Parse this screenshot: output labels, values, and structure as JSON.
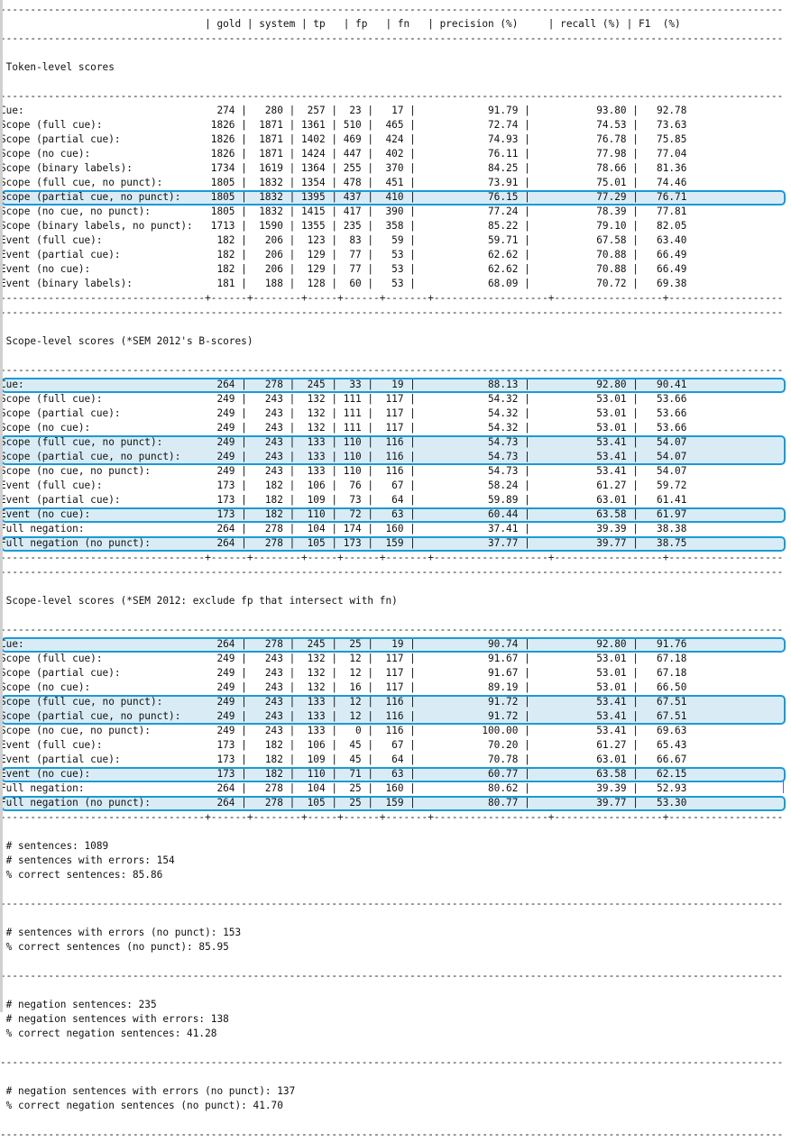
{
  "columns": {
    "gold": "gold",
    "system": "system",
    "tp": "tp",
    "fp": "fp",
    "fn": "fn",
    "precision": "precision (%)",
    "recall": "recall (%)",
    "f1": "F1  (%)"
  },
  "sections": [
    {
      "title": "Token-level scores",
      "rows": [
        {
          "label": "Cue:",
          "gold": "274",
          "system": "280",
          "tp": "257",
          "fp": "23",
          "fn": "17",
          "precision": "91.79",
          "recall": "93.80",
          "f1": "92.78"
        },
        {
          "label": "Scope (full cue):",
          "gold": "1826",
          "system": "1871",
          "tp": "1361",
          "fp": "510",
          "fn": "465",
          "precision": "72.74",
          "recall": "74.53",
          "f1": "73.63"
        },
        {
          "label": "Scope (partial cue):",
          "gold": "1826",
          "system": "1871",
          "tp": "1402",
          "fp": "469",
          "fn": "424",
          "precision": "74.93",
          "recall": "76.78",
          "f1": "75.85"
        },
        {
          "label": "Scope (no cue):",
          "gold": "1826",
          "system": "1871",
          "tp": "1424",
          "fp": "447",
          "fn": "402",
          "precision": "76.11",
          "recall": "77.98",
          "f1": "77.04"
        },
        {
          "label": "Scope (binary labels):",
          "gold": "1734",
          "system": "1619",
          "tp": "1364",
          "fp": "255",
          "fn": "370",
          "precision": "84.25",
          "recall": "78.66",
          "f1": "81.36"
        },
        {
          "label": "Scope (full cue, no punct):",
          "gold": "1805",
          "system": "1832",
          "tp": "1354",
          "fp": "478",
          "fn": "451",
          "precision": "73.91",
          "recall": "75.01",
          "f1": "74.46"
        },
        {
          "label": "Scope (partial cue, no punct):",
          "gold": "1805",
          "system": "1832",
          "tp": "1395",
          "fp": "437",
          "fn": "410",
          "precision": "76.15",
          "recall": "77.29",
          "f1": "76.71"
        },
        {
          "label": "Scope (no cue, no punct):",
          "gold": "1805",
          "system": "1832",
          "tp": "1415",
          "fp": "417",
          "fn": "390",
          "precision": "77.24",
          "recall": "78.39",
          "f1": "77.81"
        },
        {
          "label": "Scope (binary labels, no punct):",
          "gold": "1713",
          "system": "1590",
          "tp": "1355",
          "fp": "235",
          "fn": "358",
          "precision": "85.22",
          "recall": "79.10",
          "f1": "82.05"
        },
        {
          "label": "Event (full cue):",
          "gold": "182",
          "system": "206",
          "tp": "123",
          "fp": "83",
          "fn": "59",
          "precision": "59.71",
          "recall": "67.58",
          "f1": "63.40"
        },
        {
          "label": "Event (partial cue):",
          "gold": "182",
          "system": "206",
          "tp": "129",
          "fp": "77",
          "fn": "53",
          "precision": "62.62",
          "recall": "70.88",
          "f1": "66.49"
        },
        {
          "label": "Event (no cue):",
          "gold": "182",
          "system": "206",
          "tp": "129",
          "fp": "77",
          "fn": "53",
          "precision": "62.62",
          "recall": "70.88",
          "f1": "66.49"
        },
        {
          "label": "Event (binary labels):",
          "gold": "181",
          "system": "188",
          "tp": "128",
          "fp": "60",
          "fn": "53",
          "precision": "68.09",
          "recall": "70.72",
          "f1": "69.38"
        }
      ]
    },
    {
      "title": "Scope-level scores (*SEM 2012's B-scores)",
      "rows": [
        {
          "label": "Cue:",
          "gold": "264",
          "system": "278",
          "tp": "245",
          "fp": "33",
          "fn": "19",
          "precision": "88.13",
          "recall": "92.80",
          "f1": "90.41"
        },
        {
          "label": "Scope (full cue):",
          "gold": "249",
          "system": "243",
          "tp": "132",
          "fp": "111",
          "fn": "117",
          "precision": "54.32",
          "recall": "53.01",
          "f1": "53.66"
        },
        {
          "label": "Scope (partial cue):",
          "gold": "249",
          "system": "243",
          "tp": "132",
          "fp": "111",
          "fn": "117",
          "precision": "54.32",
          "recall": "53.01",
          "f1": "53.66"
        },
        {
          "label": "Scope (no cue):",
          "gold": "249",
          "system": "243",
          "tp": "132",
          "fp": "111",
          "fn": "117",
          "precision": "54.32",
          "recall": "53.01",
          "f1": "53.66"
        },
        {
          "label": "Scope (full cue, no punct):",
          "gold": "249",
          "system": "243",
          "tp": "133",
          "fp": "110",
          "fn": "116",
          "precision": "54.73",
          "recall": "53.41",
          "f1": "54.07"
        },
        {
          "label": "Scope (partial cue, no punct):",
          "gold": "249",
          "system": "243",
          "tp": "133",
          "fp": "110",
          "fn": "116",
          "precision": "54.73",
          "recall": "53.41",
          "f1": "54.07"
        },
        {
          "label": "Scope (no cue, no punct):",
          "gold": "249",
          "system": "243",
          "tp": "133",
          "fp": "110",
          "fn": "116",
          "precision": "54.73",
          "recall": "53.41",
          "f1": "54.07"
        },
        {
          "label": "Event (full cue):",
          "gold": "173",
          "system": "182",
          "tp": "106",
          "fp": "76",
          "fn": "67",
          "precision": "58.24",
          "recall": "61.27",
          "f1": "59.72"
        },
        {
          "label": "Event (partial cue):",
          "gold": "173",
          "system": "182",
          "tp": "109",
          "fp": "73",
          "fn": "64",
          "precision": "59.89",
          "recall": "63.01",
          "f1": "61.41"
        },
        {
          "label": "Event (no cue):",
          "gold": "173",
          "system": "182",
          "tp": "110",
          "fp": "72",
          "fn": "63",
          "precision": "60.44",
          "recall": "63.58",
          "f1": "61.97"
        },
        {
          "label": "Full negation:",
          "gold": "264",
          "system": "278",
          "tp": "104",
          "fp": "174",
          "fn": "160",
          "precision": "37.41",
          "recall": "39.39",
          "f1": "38.38"
        },
        {
          "label": "Full negation (no punct):",
          "gold": "264",
          "system": "278",
          "tp": "105",
          "fp": "173",
          "fn": "159",
          "precision": "37.77",
          "recall": "39.77",
          "f1": "38.75"
        }
      ]
    },
    {
      "title": "Scope-level scores (*SEM 2012: exclude fp that intersect with fn)",
      "rows": [
        {
          "label": "Cue:",
          "gold": "264",
          "system": "278",
          "tp": "245",
          "fp": "25",
          "fn": "19",
          "precision": "90.74",
          "recall": "92.80",
          "f1": "91.76"
        },
        {
          "label": "Scope (full cue):",
          "gold": "249",
          "system": "243",
          "tp": "132",
          "fp": "12",
          "fn": "117",
          "precision": "91.67",
          "recall": "53.01",
          "f1": "67.18"
        },
        {
          "label": "Scope (partial cue):",
          "gold": "249",
          "system": "243",
          "tp": "132",
          "fp": "12",
          "fn": "117",
          "precision": "91.67",
          "recall": "53.01",
          "f1": "67.18"
        },
        {
          "label": "Scope (no cue):",
          "gold": "249",
          "system": "243",
          "tp": "132",
          "fp": "16",
          "fn": "117",
          "precision": "89.19",
          "recall": "53.01",
          "f1": "66.50"
        },
        {
          "label": "Scope (full cue, no punct):",
          "gold": "249",
          "system": "243",
          "tp": "133",
          "fp": "12",
          "fn": "116",
          "precision": "91.72",
          "recall": "53.41",
          "f1": "67.51"
        },
        {
          "label": "Scope (partial cue, no punct):",
          "gold": "249",
          "system": "243",
          "tp": "133",
          "fp": "12",
          "fn": "116",
          "precision": "91.72",
          "recall": "53.41",
          "f1": "67.51"
        },
        {
          "label": "Scope (no cue, no punct):",
          "gold": "249",
          "system": "243",
          "tp": "133",
          "fp": "0",
          "fn": "116",
          "precision": "100.00",
          "recall": "53.41",
          "f1": "69.63"
        },
        {
          "label": "Event (full cue):",
          "gold": "173",
          "system": "182",
          "tp": "106",
          "fp": "45",
          "fn": "67",
          "precision": "70.20",
          "recall": "61.27",
          "f1": "65.43"
        },
        {
          "label": "Event (partial cue):",
          "gold": "173",
          "system": "182",
          "tp": "109",
          "fp": "45",
          "fn": "64",
          "precision": "70.78",
          "recall": "63.01",
          "f1": "66.67"
        },
        {
          "label": "Event (no cue):",
          "gold": "173",
          "system": "182",
          "tp": "110",
          "fp": "71",
          "fn": "63",
          "precision": "60.77",
          "recall": "63.58",
          "f1": "62.15"
        },
        {
          "label": "Full negation:",
          "gold": "264",
          "system": "278",
          "tp": "104",
          "fp": "25",
          "fn": "160",
          "precision": "80.62",
          "recall": "39.39",
          "f1": "52.93"
        },
        {
          "label": "Full negation (no punct):",
          "gold": "264",
          "system": "278",
          "tp": "105",
          "fp": "25",
          "fn": "159",
          "precision": "80.77",
          "recall": "39.77",
          "f1": "53.30"
        }
      ]
    }
  ],
  "summary_blocks": [
    [
      "# sentences: 1089",
      "# sentences with errors: 154",
      "% correct sentences: 85.86"
    ],
    [
      "# sentences with errors (no punct): 153",
      "% correct sentences (no punct): 85.95"
    ],
    [
      "# negation sentences: 235",
      "# negation sentences with errors: 138",
      "% correct negation sentences: 41.28"
    ],
    [
      "# negation sentences with errors (no punct): 137",
      "% correct negation sentences (no punct): 41.70"
    ]
  ],
  "colors": {
    "highlight_border": "#1a9ad6",
    "highlight_fill": "#d9ecf6",
    "text": "#111111",
    "background": "#ffffff"
  }
}
